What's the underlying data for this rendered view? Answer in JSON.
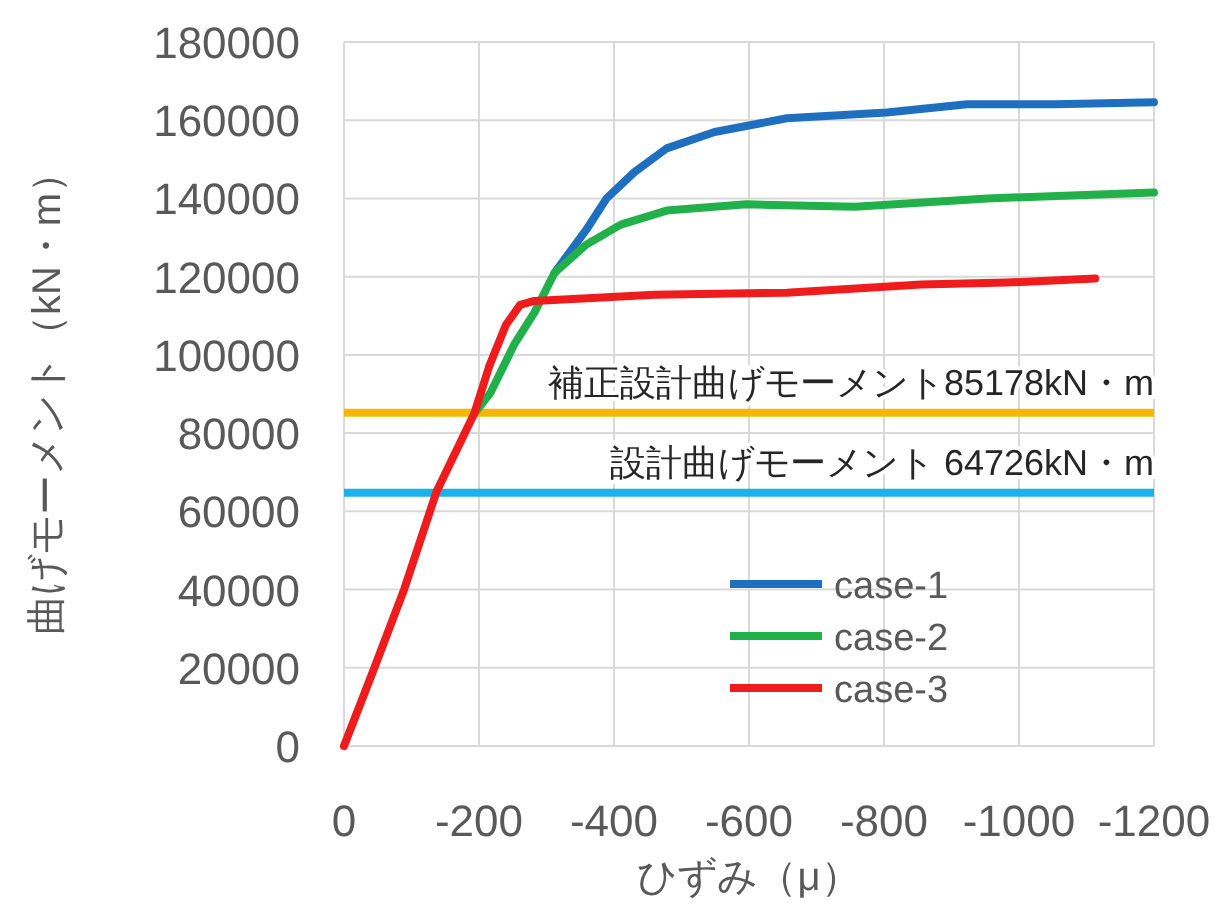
{
  "chart_data": {
    "type": "line",
    "xlabel": "ひずみ（μ）",
    "ylabel": "曲げモーメント（kN・m）",
    "xlim": [
      0,
      -1200
    ],
    "xticks": [
      0,
      -200,
      -400,
      -600,
      -800,
      -1000,
      -1200
    ],
    "ylim": [
      0,
      180000
    ],
    "yticks": [
      0,
      20000,
      40000,
      60000,
      80000,
      100000,
      120000,
      140000,
      160000,
      180000
    ],
    "grid": true,
    "legend": "bottom right",
    "marker": "none",
    "line_style": "solid",
    "series": [
      {
        "name": "case-1",
        "color": "#1f6fc0",
        "x": [
          -312,
          -359,
          -389,
          -430,
          -478,
          -549,
          -656,
          -804,
          -923,
          -1053,
          -1200
        ],
        "values": [
          121000,
          132000,
          140000,
          146700,
          152800,
          157000,
          160500,
          162000,
          164100,
          164100,
          164600
        ]
      },
      {
        "name": "case-2",
        "color": "#22b04a",
        "x": [
          -193,
          -217,
          -252,
          -282,
          -312,
          -359,
          -410,
          -478,
          -596,
          -757,
          -953,
          -1200
        ],
        "values": [
          85000,
          90300,
          102600,
          110800,
          121000,
          128200,
          133300,
          136900,
          138500,
          137900,
          140000,
          141500
        ]
      },
      {
        "name": "case-3",
        "color": "#ee1c1c",
        "x": [
          0,
          -45,
          -89,
          -137,
          -193,
          -215,
          -240,
          -261,
          -282,
          -460,
          -656,
          -855,
          -982,
          -1113
        ],
        "values": [
          0,
          20000,
          40000,
          65000,
          85000,
          97000,
          107700,
          112800,
          113800,
          115400,
          115900,
          118000,
          118500,
          119500
        ]
      }
    ],
    "ref_lines": [
      {
        "axis": "y",
        "value": 85178,
        "label": "補正設計曲げモーメント85178kN・m",
        "color": "#f5b800"
      },
      {
        "axis": "y",
        "value": 64726,
        "label": "設計曲げモーメント 64726kN・m",
        "color": "#1fb0e8"
      }
    ]
  }
}
